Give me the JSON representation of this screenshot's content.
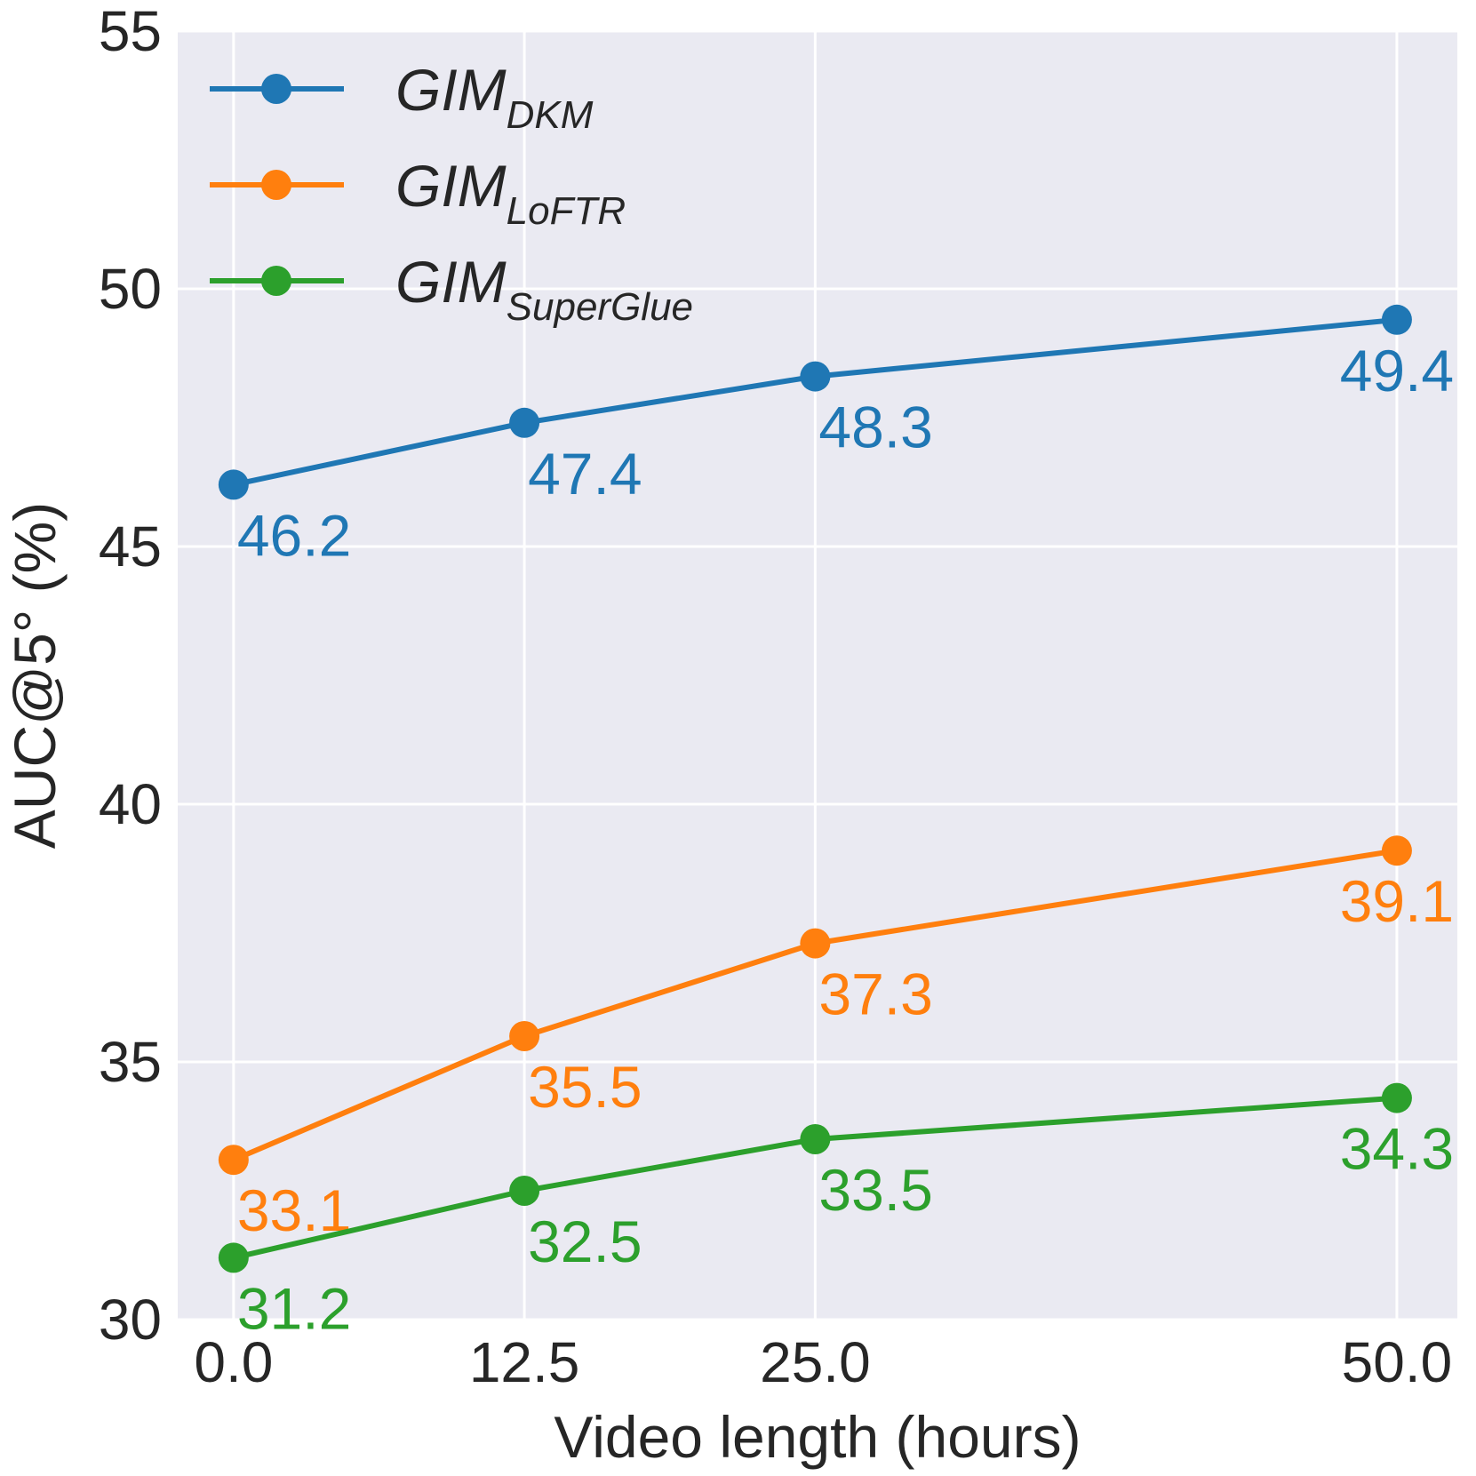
{
  "chart_data": {
    "type": "line",
    "title": "",
    "xlabel": "Video length (hours)",
    "ylabel": "AUC@5° (%)",
    "x": [
      0.0,
      12.5,
      25.0,
      50.0
    ],
    "x_tick_labels": [
      "0.0",
      "12.5",
      "25.0",
      "50.0"
    ],
    "y_ticks": [
      30,
      35,
      40,
      45,
      50,
      55
    ],
    "y_tick_labels": [
      "30",
      "35",
      "40",
      "45",
      "50",
      "55"
    ],
    "xlim": [
      -2.4,
      52.6
    ],
    "ylim": [
      30,
      55
    ],
    "grid": true,
    "legend_position": "top-left",
    "series": [
      {
        "name": "GIM_DKM",
        "legend_main": "GIM",
        "legend_sub": "DKM",
        "color": "#1f77b4",
        "values": [
          46.2,
          47.4,
          48.3,
          49.4
        ],
        "labels": [
          "46.2",
          "47.4",
          "48.3",
          "49.4"
        ]
      },
      {
        "name": "GIM_LoFTR",
        "legend_main": "GIM",
        "legend_sub": "LoFTR",
        "color": "#ff7f0e",
        "values": [
          33.1,
          35.5,
          37.3,
          39.1
        ],
        "labels": [
          "33.1",
          "35.5",
          "37.3",
          "39.1"
        ]
      },
      {
        "name": "GIM_SuperGlue",
        "legend_main": "GIM",
        "legend_sub": "SuperGlue",
        "color": "#2ca02c",
        "values": [
          31.2,
          32.5,
          33.5,
          34.3
        ],
        "labels": [
          "31.2",
          "32.5",
          "33.5",
          "34.3"
        ]
      }
    ]
  },
  "style": {
    "plot_background": "#eaeaf2",
    "grid_color": "#ffffff",
    "text_color": "#262626"
  }
}
